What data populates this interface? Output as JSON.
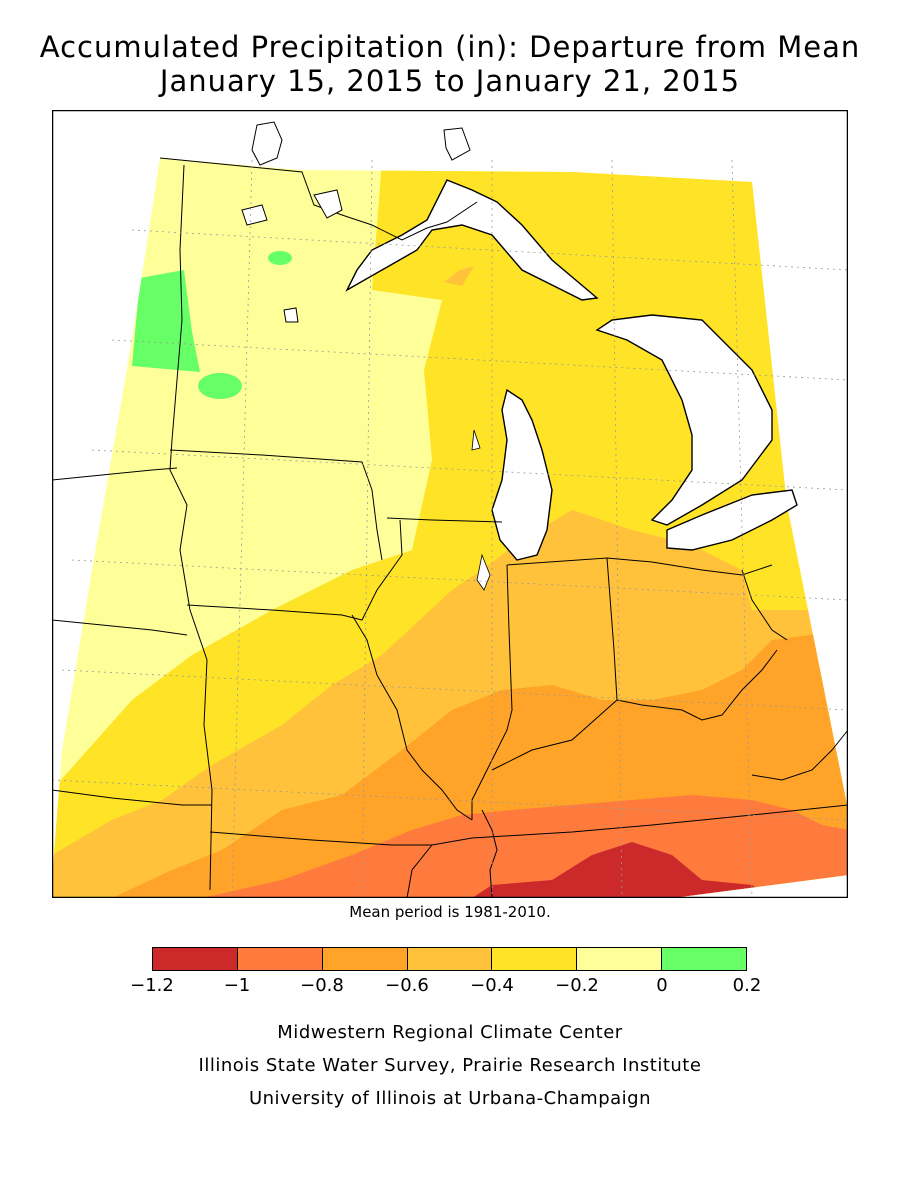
{
  "title": {
    "line1": "Accumulated Precipitation (in): Departure from Mean",
    "line2": "January 15, 2015 to January 21, 2015"
  },
  "map_note": "Mean period is 1981-2010.",
  "legend": {
    "colors": [
      "#cc2a2a",
      "#ff7a3d",
      "#ffa329",
      "#ffc23a",
      "#ffe326",
      "#ffff99",
      "#66ff66"
    ],
    "tick_labels": [
      "−1.2",
      "−1",
      "−0.8",
      "−0.6",
      "−0.4",
      "−0.2",
      "0",
      "0.2"
    ]
  },
  "credits": [
    "Midwestern Regional Climate Center",
    "Illinois State Water Survey, Prairie Research Institute",
    "University of Illinois at Urbana-Champaign"
  ]
}
